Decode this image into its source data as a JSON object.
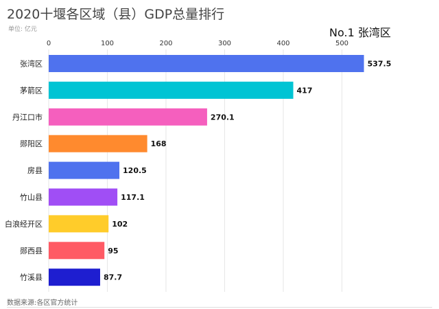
{
  "header": {
    "title": "2020十堰各区域（县）GDP总量排行",
    "unit": "单位: 亿元",
    "leader": "No.1 张湾区"
  },
  "footer": {
    "source": "数据来源:各区官方统计"
  },
  "chart_data": {
    "type": "bar",
    "orientation": "horizontal",
    "title": "2020十堰各区域（县）GDP总量排行",
    "xlabel": "",
    "ylabel": "",
    "xlim": [
      0,
      550
    ],
    "xticks": [
      0,
      100,
      200,
      300,
      400,
      500
    ],
    "axis_position": "top",
    "grid": true,
    "categories": [
      "张湾区",
      "茅箭区",
      "丹江口市",
      "郧阳区",
      "房县",
      "竹山县",
      "白浪经开区",
      "郧西县",
      "竹溪县"
    ],
    "values": [
      537.5,
      417,
      270.1,
      168,
      120.5,
      117.1,
      102,
      95,
      87.7
    ],
    "value_labels": [
      "537.5",
      "417",
      "270.1",
      "168",
      "120.5",
      "117.1",
      "102",
      "95",
      "87.7"
    ],
    "colors": [
      "#4f72ee",
      "#00c4d4",
      "#f55fbe",
      "#ff8a2e",
      "#4f72ee",
      "#a04ef5",
      "#ffcc2a",
      "#ff5a64",
      "#1e1ed0"
    ]
  }
}
